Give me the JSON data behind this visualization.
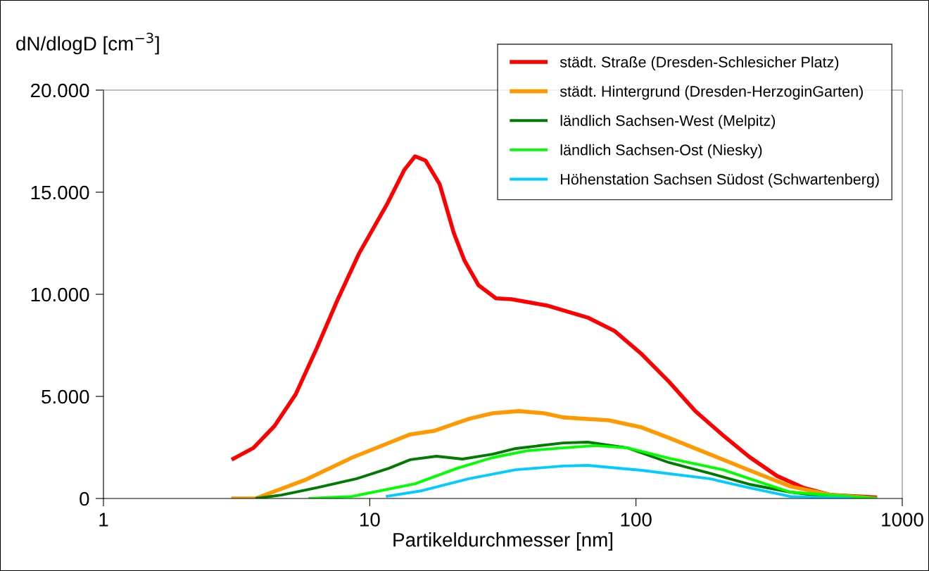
{
  "chart_data": {
    "type": "line",
    "xlabel": "Partikeldurchmesser [nm]",
    "ylabel": "dN/dlogD [cm$^{−3}$]",
    "log": "x",
    "xlim": [
      1,
      1000
    ],
    "xticks": [
      1,
      10,
      100,
      1000
    ],
    "ylim": [
      0,
      20000
    ],
    "yticks": [
      {
        "value": 0,
        "label": "0"
      },
      {
        "value": 5000,
        "label": "5.000"
      },
      {
        "value": 10000,
        "label": "10.000"
      },
      {
        "value": 15000,
        "label": "15.000"
      },
      {
        "value": 20000,
        "label": "20.000"
      }
    ],
    "grid": false,
    "legend": "top right",
    "series": [
      {
        "name": "städt. Straße (Dresden-Schlesicher Platz)",
        "color": "#ff0000",
        "x": [
          3.03,
          3.66,
          4.39,
          5.27,
          6.32,
          7.59,
          9.12,
          11.6,
          13.5,
          14.8,
          16.2,
          18.3,
          20.7,
          22.7,
          25.6,
          29.8,
          34.1,
          46.3,
          65.9,
          83.0,
          105,
          133,
          167,
          212,
          267,
          339,
          427,
          541,
          804
        ],
        "values": [
          1900,
          2480,
          3550,
          5100,
          7350,
          9760,
          12000,
          14400,
          16100,
          16760,
          16550,
          15400,
          13000,
          11650,
          10450,
          9800,
          9760,
          9450,
          8860,
          8210,
          7070,
          5720,
          4280,
          3100,
          2030,
          1100,
          520,
          170,
          50
        ]
      },
      {
        "name": "städt. Hintergrund (Dresden-HerzoginGarten)",
        "color": "#ff9900",
        "x": [
          3.02,
          3.72,
          5.7,
          8.58,
          14.2,
          17.4,
          23.6,
          28.9,
          36.3,
          45.2,
          53.4,
          79.2,
          105,
          133,
          189,
          267,
          380,
          541,
          804
        ],
        "values": [
          0,
          0,
          900,
          2000,
          3140,
          3310,
          3900,
          4170,
          4280,
          4170,
          3970,
          3830,
          3480,
          2970,
          2170,
          1380,
          590,
          170,
          0
        ]
      },
      {
        "name": "ländlich Sachsen-West (Melpitz)",
        "color": "#007a00",
        "x": [
          3.72,
          4.66,
          6.3,
          8.93,
          11.8,
          14.2,
          17.8,
          22.3,
          28.9,
          35.4,
          53.3,
          65.9,
          93,
          133,
          189,
          267,
          380,
          541,
          804
        ],
        "values": [
          0,
          170,
          520,
          970,
          1480,
          1900,
          2070,
          1930,
          2170,
          2450,
          2720,
          2760,
          2480,
          1760,
          1240,
          690,
          310,
          70,
          0
        ]
      },
      {
        "name": "ländlich Sachsen-Ost (Niesky)",
        "color": "#00ff00",
        "x": [
          5.88,
          8.58,
          14.8,
          21.3,
          28.9,
          39.1,
          53.3,
          70.3,
          93,
          133,
          212,
          267,
          380,
          804
        ],
        "values": [
          0,
          100,
          720,
          1480,
          2000,
          2340,
          2480,
          2590,
          2480,
          1970,
          1410,
          970,
          310,
          0
        ]
      },
      {
        "name": "Höhenstation Sachsen Südost (Schwartenberg)",
        "color": "#00ccff",
        "x": [
          11.5,
          15.7,
          23.6,
          35.4,
          53.3,
          65.9,
          105,
          189,
          267,
          380,
          650
        ],
        "values": [
          100,
          380,
          970,
          1410,
          1590,
          1620,
          1380,
          970,
          520,
          100,
          0
        ]
      }
    ]
  }
}
